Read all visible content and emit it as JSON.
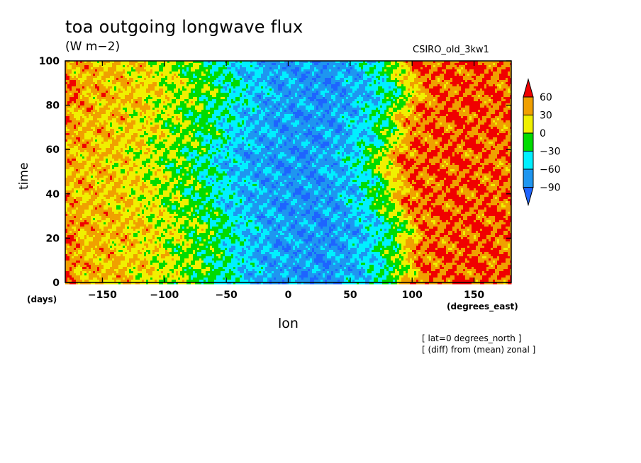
{
  "title": "toa outgoing longwave flux",
  "units": "(W m−2)",
  "model": "CSIRO_old_3kw1",
  "notes": [
    "[ lat=0 degrees_north ]",
    "[ (diff) from (mean) zonal ]"
  ],
  "chart_data": {
    "type": "heatmap",
    "title": "toa outgoing longwave flux",
    "subtitle": "(W m−2)",
    "xlabel": "lon",
    "xunits": "(degrees_east)",
    "ylabel": "time",
    "yunits": "(days)",
    "xlim": [
      -180,
      180
    ],
    "ylim": [
      0,
      100
    ],
    "xticks": [
      -150,
      -100,
      -50,
      0,
      50,
      100,
      150
    ],
    "xtick_labels": [
      "−150",
      "−100",
      "−50",
      "0",
      "50",
      "100",
      "150"
    ],
    "yticks": [
      0,
      20,
      40,
      60,
      80,
      100
    ],
    "ytick_labels": [
      "0",
      "20",
      "40",
      "60",
      "80",
      "100"
    ],
    "colorbar": {
      "levels": [
        -90,
        -60,
        -30,
        0,
        30,
        60
      ],
      "level_labels": [
        "−90",
        "−60",
        "−30",
        "0",
        "30",
        "60"
      ],
      "colors": [
        "#1e64ff",
        "#1e96f0",
        "#00f0ff",
        "#00dc00",
        "#f0f000",
        "#f0a000",
        "#f00000"
      ]
    },
    "approx_zonal_profile": {
      "lon": [
        -180,
        -160,
        -140,
        -120,
        -100,
        -80,
        -60,
        -40,
        -20,
        0,
        20,
        40,
        60,
        80,
        100,
        120,
        140,
        160,
        180
      ],
      "anomaly": [
        40,
        35,
        30,
        20,
        5,
        -10,
        -30,
        -55,
        -70,
        -75,
        -80,
        -70,
        -50,
        -10,
        55,
        60,
        62,
        60,
        55
      ]
    }
  }
}
